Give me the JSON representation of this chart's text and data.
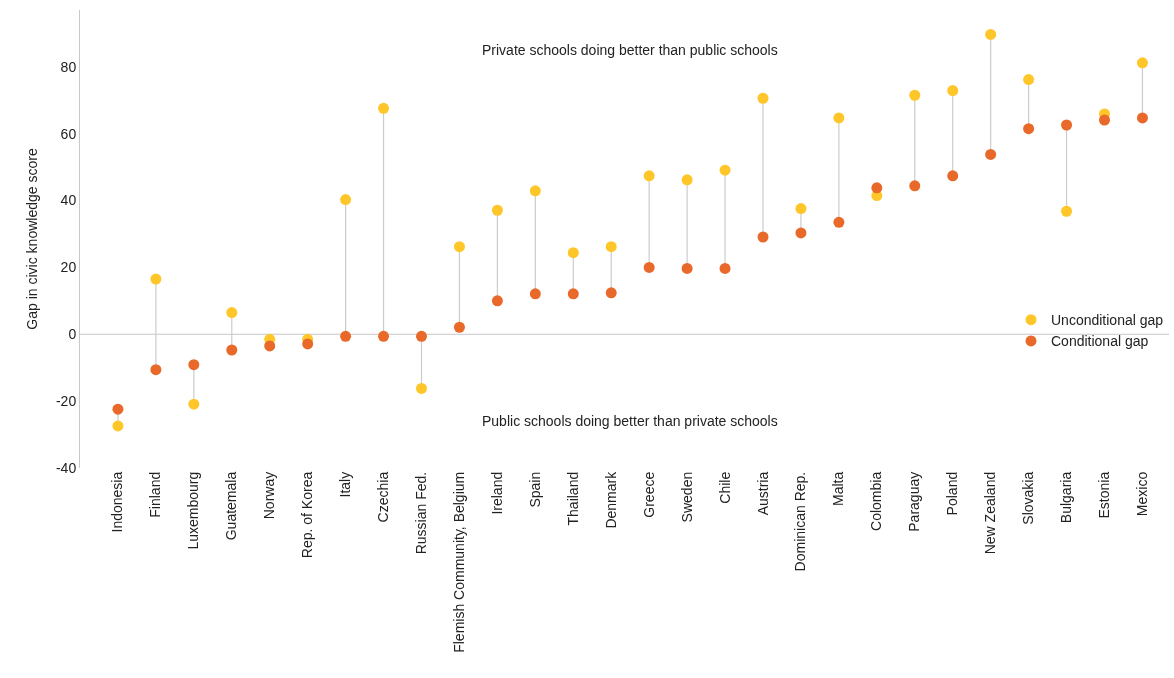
{
  "chart_data": {
    "type": "scatter",
    "ylabel": "Gap in civic knowledge score",
    "categories": [
      "Indonesia",
      "Finland",
      "Luxembourg",
      "Guatemala",
      "Norway",
      "Rep. of Korea",
      "Italy",
      "Czechia",
      "Russian Fed.",
      "Flemish Community, Belgium",
      "Ireland",
      "Spain",
      "Thailand",
      "Denmark",
      "Greece",
      "Sweden",
      "Chile",
      "Austria",
      "Dominican Rep.",
      "Malta",
      "Colombia",
      "Paraguay",
      "Poland",
      "New Zealand",
      "Slovakia",
      "Bulgaria",
      "Estonia",
      "Mexico"
    ],
    "series": [
      {
        "name": "Unconditional gap",
        "color": "#ffc629",
        "values": [
          -27.4,
          16.5,
          -20.9,
          6.5,
          -1.5,
          -1.5,
          40.3,
          67.6,
          -16.2,
          26.2,
          37.1,
          42.9,
          24.4,
          26.2,
          47.4,
          46.2,
          49.1,
          70.6,
          37.6,
          64.7,
          41.5,
          71.5,
          72.9,
          89.7,
          76.2,
          36.8,
          65.9,
          81.2
        ]
      },
      {
        "name": "Conditional gap",
        "color": "#e8692a",
        "values": [
          -22.4,
          -10.6,
          -9.1,
          -4.7,
          -3.5,
          -2.9,
          -0.6,
          -0.6,
          -0.6,
          2.1,
          10,
          12.1,
          12.1,
          12.4,
          20,
          19.7,
          19.7,
          29.1,
          30.3,
          33.5,
          43.8,
          44.4,
          47.4,
          53.8,
          61.5,
          62.6,
          64.1,
          64.7
        ]
      }
    ],
    "ylim": [
      -40,
      97
    ],
    "yticks": [
      -40,
      -20,
      0,
      20,
      40,
      60,
      80
    ],
    "ref_lines": [
      {
        "axis": "y",
        "value": 0,
        "color": "#c8c8c8"
      }
    ],
    "annotations": [
      "Private schools doing better than public schools",
      "Public schools doing better than private schools"
    ],
    "legend": "right",
    "marker": "circle",
    "grid": false
  }
}
